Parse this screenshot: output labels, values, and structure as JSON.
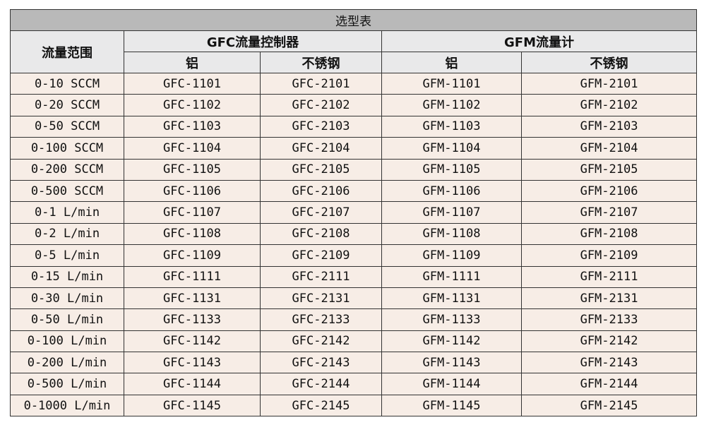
{
  "title": "选型表",
  "headers": {
    "range": "流量范围",
    "gfc": "GFC流量控制器",
    "gfm": "GFM流量计",
    "aluminum": "铝",
    "stainless": "不锈钢"
  },
  "rows": [
    [
      "0-10 SCCM",
      "GFC-1101",
      "GFC-2101",
      "GFM-1101",
      "GFM-2101"
    ],
    [
      "0-20 SCCM",
      "GFC-1102",
      "GFC-2102",
      "GFM-1102",
      "GFM-2102"
    ],
    [
      "0-50 SCCM",
      "GFC-1103",
      "GFC-2103",
      "GFM-1103",
      "GFM-2103"
    ],
    [
      "0-100 SCCM",
      "GFC-1104",
      "GFC-2104",
      "GFM-1104",
      "GFM-2104"
    ],
    [
      "0-200 SCCM",
      "GFC-1105",
      "GFC-2105",
      "GFM-1105",
      "GFM-2105"
    ],
    [
      "0-500 SCCM",
      "GFC-1106",
      "GFC-2106",
      "GFM-1106",
      "GFM-2106"
    ],
    [
      "0-1 L/min",
      "GFC-1107",
      "GFC-2107",
      "GFM-1107",
      "GFM-2107"
    ],
    [
      "0-2 L/min",
      "GFC-1108",
      "GFC-2108",
      "GFM-1108",
      "GFM-2108"
    ],
    [
      "0-5 L/min",
      "GFC-1109",
      "GFC-2109",
      "GFM-1109",
      "GFM-2109"
    ],
    [
      "0-15 L/min",
      "GFC-1111",
      "GFC-2111",
      "GFM-1111",
      "GFM-2111"
    ],
    [
      "0-30 L/min",
      "GFC-1131",
      "GFC-2131",
      "GFM-1131",
      "GFM-2131"
    ],
    [
      "0-50 L/min",
      "GFC-1133",
      "GFC-2133",
      "GFM-1133",
      "GFM-2133"
    ],
    [
      "0-100 L/min",
      "GFC-1142",
      "GFC-2142",
      "GFM-1142",
      "GFM-2142"
    ],
    [
      "0-200 L/min",
      "GFC-1143",
      "GFC-2143",
      "GFM-1143",
      "GFM-2143"
    ],
    [
      "0-500 L/min",
      "GFC-1144",
      "GFC-2144",
      "GFM-1144",
      "GFM-2144"
    ],
    [
      "0-1000 L/min",
      "GFC-1145",
      "GFC-2145",
      "GFM-1145",
      "GFM-2145"
    ]
  ]
}
